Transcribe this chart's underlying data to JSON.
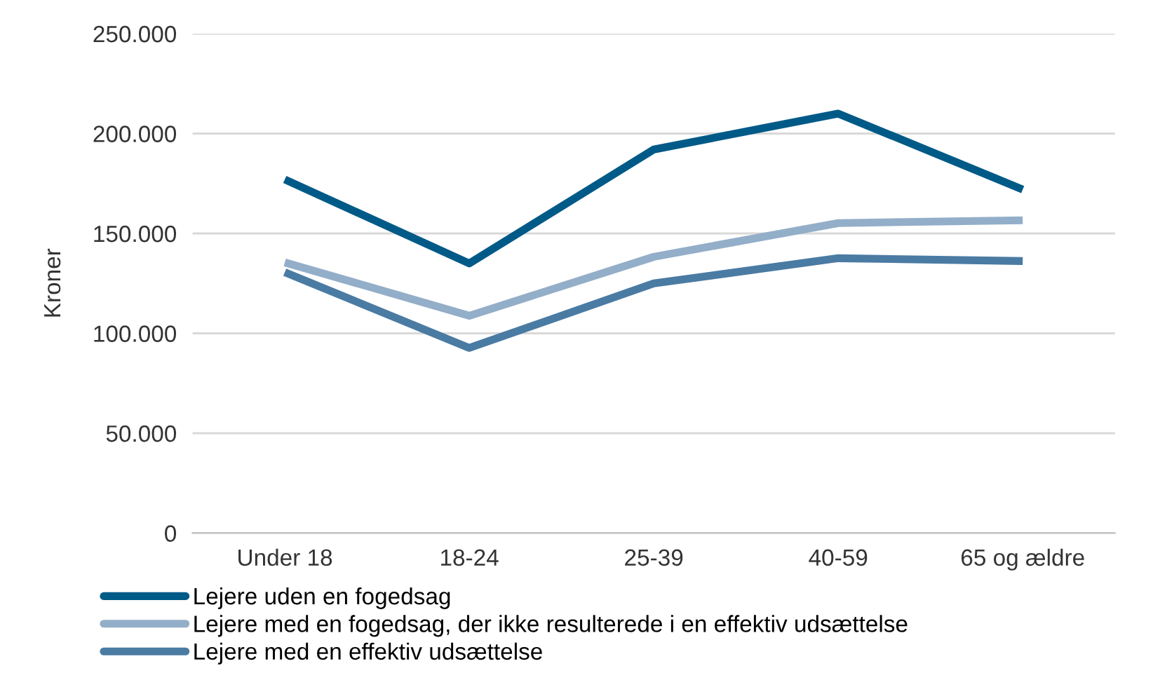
{
  "chart_data": {
    "type": "line",
    "ylabel": "Kroner",
    "categories": [
      "Under 18",
      "18-24",
      "25-39",
      "40-59",
      "65 og ældre"
    ],
    "series": [
      {
        "name": "Lejere uden en fogedsag",
        "color": "#005a87",
        "values": [
          177000,
          135000,
          192000,
          210000,
          172000
        ]
      },
      {
        "name": "Lejere med en fogedsag, der ikke resulterede i en effektiv udsættelse",
        "color": "#93aec8",
        "values": [
          135500,
          108800,
          138300,
          155200,
          156600
        ]
      },
      {
        "name": "Lejere med en effektiv udsættelse",
        "color": "#4a7ba3",
        "values": [
          130600,
          92700,
          125000,
          137600,
          136200
        ]
      }
    ],
    "ylim": [
      0,
      250000
    ],
    "yticks": [
      0,
      {
        "value": 50000,
        "label": "50.000"
      },
      {
        "value": 100000,
        "label": "100.000"
      },
      {
        "value": 150000,
        "label": "150.000"
      },
      {
        "value": 200000,
        "label": "200.000"
      },
      {
        "value": 250000,
        "label": "250.000"
      }
    ],
    "grid": "y",
    "legend": "bottom",
    "marker": "none",
    "line_style": "solid"
  }
}
